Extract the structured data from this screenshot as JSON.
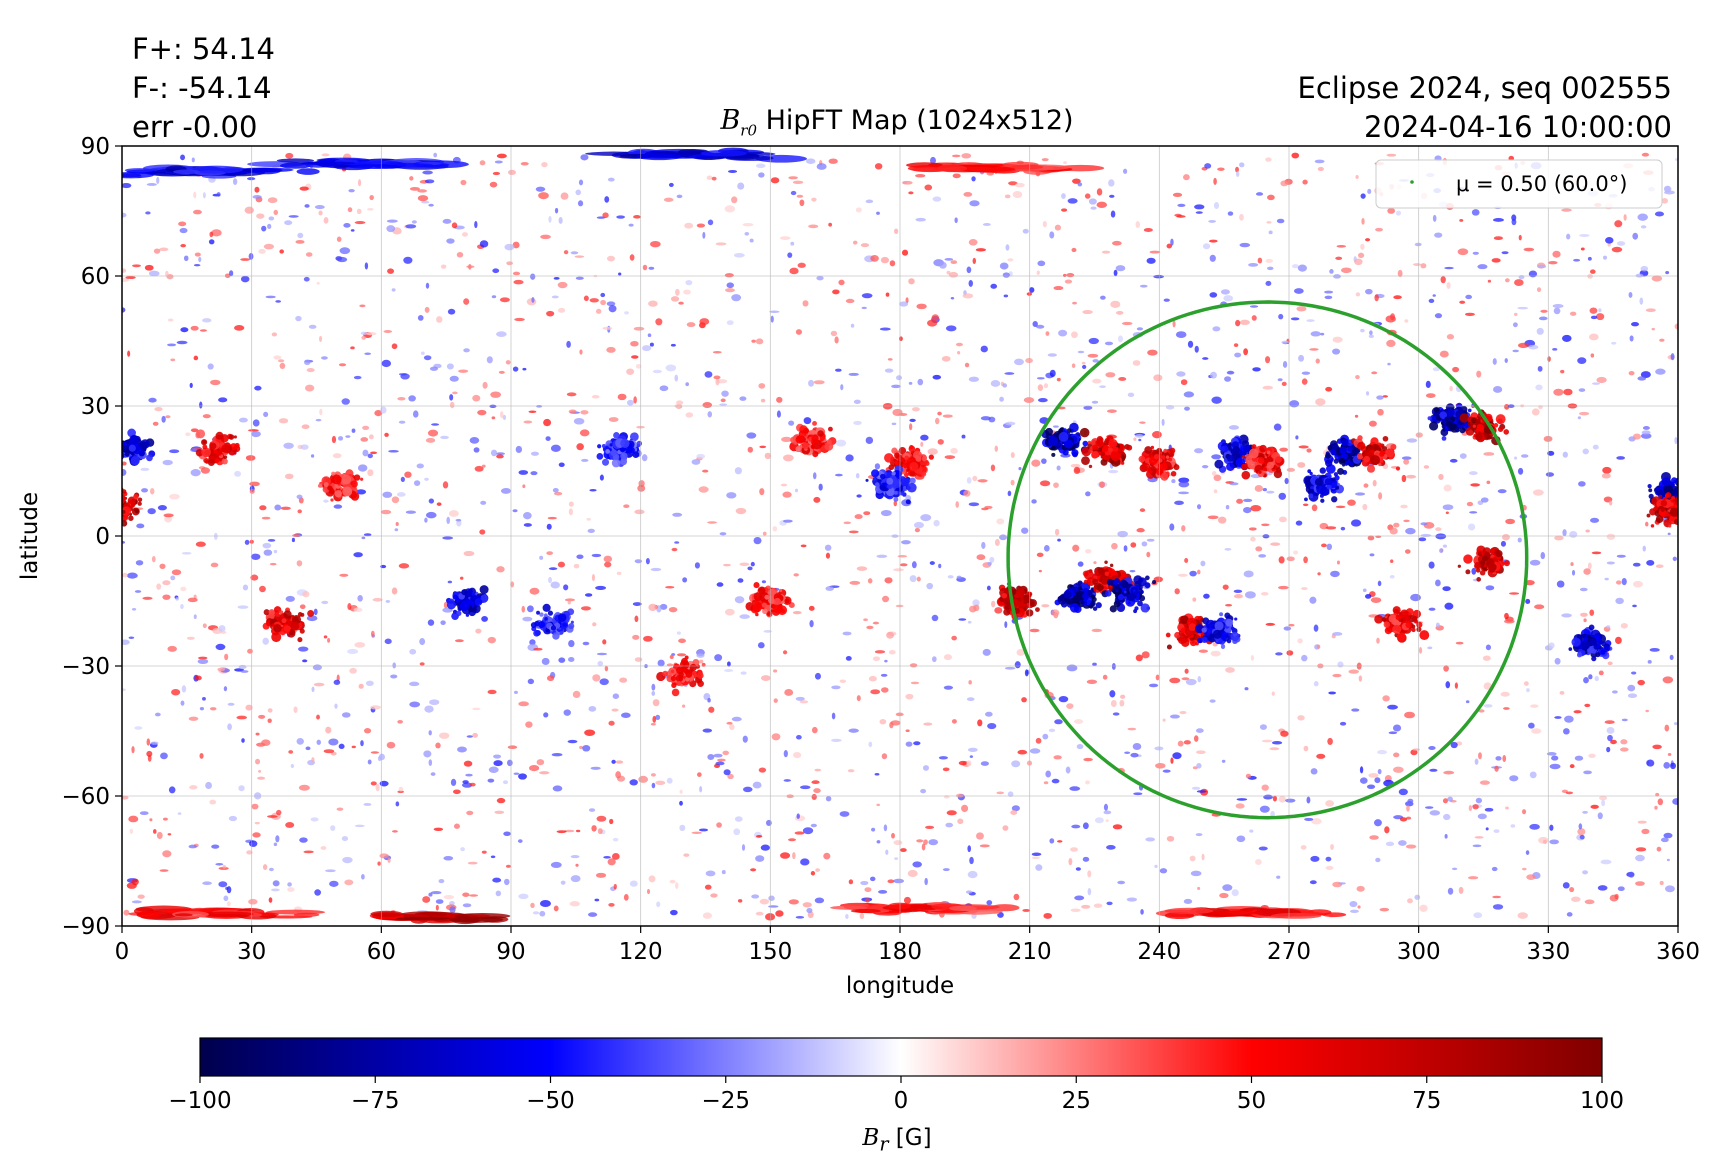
{
  "header": {
    "flux_pos": "F+: 54.14",
    "flux_neg": "F-: -54.14",
    "err": "err -0.00",
    "title_sym": "B",
    "title_sub": "r0",
    "title_text": "HipFT Map (1024x512)",
    "run": "Eclipse 2024, seq 002555",
    "datetime": "2024-04-16 10:00:00"
  },
  "chart_data": {
    "type": "heatmap",
    "xlabel": "longitude",
    "ylabel": "latitude",
    "xlim": [
      0,
      360
    ],
    "ylim": [
      -90,
      90
    ],
    "x_ticks": [
      "0",
      "30",
      "60",
      "90",
      "120",
      "150",
      "180",
      "210",
      "240",
      "270",
      "300",
      "330",
      "360"
    ],
    "y_ticks": [
      "90",
      "60",
      "30",
      "0",
      "−30",
      "−60",
      "−90"
    ],
    "grid": true,
    "colormap": "seismic",
    "colormap_colors": [
      "#00004c",
      "#0000ff",
      "#ffffff",
      "#ff0000",
      "#800000"
    ],
    "colorbar": {
      "label_sym": "B",
      "label_sub": "r",
      "label_unit": "[G]",
      "range": [
        -100,
        100
      ],
      "ticks": [
        "−100",
        "−75",
        "−50",
        "−25",
        "0",
        "25",
        "50",
        "75",
        "100"
      ]
    },
    "legend": {
      "placement": "top-right",
      "label": "μ = 0.50 (60.0°)",
      "color": "#2ca02c"
    },
    "contour": {
      "name": "μ = 0.50 (60.0°)",
      "color": "#2ca02c",
      "center_lon": 265,
      "center_lat": -5,
      "lon_half_width": 60,
      "lat_top": 54,
      "lat_bottom": -65
    },
    "active_regions": [
      {
        "lon": 218,
        "lat": 22,
        "strength": -95
      },
      {
        "lon": 228,
        "lat": 20,
        "strength": 90
      },
      {
        "lon": 240,
        "lat": 17,
        "strength": 70
      },
      {
        "lon": 258,
        "lat": 19,
        "strength": -80
      },
      {
        "lon": 264,
        "lat": 17,
        "strength": 70
      },
      {
        "lon": 278,
        "lat": 12,
        "strength": -70
      },
      {
        "lon": 283,
        "lat": 19,
        "strength": -90
      },
      {
        "lon": 290,
        "lat": 19,
        "strength": 80
      },
      {
        "lon": 308,
        "lat": 27,
        "strength": -90
      },
      {
        "lon": 315,
        "lat": 25,
        "strength": 95
      },
      {
        "lon": 207,
        "lat": -15,
        "strength": 90
      },
      {
        "lon": 222,
        "lat": -14,
        "strength": -95
      },
      {
        "lon": 228,
        "lat": -10,
        "strength": 85
      },
      {
        "lon": 233,
        "lat": -13,
        "strength": -90
      },
      {
        "lon": 248,
        "lat": -22,
        "strength": 85
      },
      {
        "lon": 254,
        "lat": -22,
        "strength": -70
      },
      {
        "lon": 296,
        "lat": -20,
        "strength": 75
      },
      {
        "lon": 316,
        "lat": -6,
        "strength": 85
      },
      {
        "lon": 2,
        "lat": 20,
        "strength": -80
      },
      {
        "lon": 0,
        "lat": 7,
        "strength": 90
      },
      {
        "lon": 22,
        "lat": 20,
        "strength": 70
      },
      {
        "lon": 50,
        "lat": 12,
        "strength": 60
      },
      {
        "lon": 38,
        "lat": -20,
        "strength": 75
      },
      {
        "lon": 80,
        "lat": -15,
        "strength": -80
      },
      {
        "lon": 100,
        "lat": -20,
        "strength": -60
      },
      {
        "lon": 160,
        "lat": 22,
        "strength": 60
      },
      {
        "lon": 182,
        "lat": 17,
        "strength": 65
      },
      {
        "lon": 178,
        "lat": 12,
        "strength": -60
      },
      {
        "lon": 150,
        "lat": -15,
        "strength": 60
      },
      {
        "lon": 130,
        "lat": -32,
        "strength": 60
      },
      {
        "lon": 115,
        "lat": 20,
        "strength": -55
      },
      {
        "lon": 340,
        "lat": -25,
        "strength": -80
      },
      {
        "lon": 358,
        "lat": 10,
        "strength": -85
      },
      {
        "lon": 358,
        "lat": 6,
        "strength": 85
      }
    ],
    "polar_bands": [
      {
        "lon": 20,
        "lat": 84,
        "strength": -75
      },
      {
        "lon": 55,
        "lat": 86,
        "strength": -70
      },
      {
        "lon": 135,
        "lat": 88,
        "strength": -80
      },
      {
        "lon": 200,
        "lat": 85,
        "strength": 60
      },
      {
        "lon": 75,
        "lat": -88,
        "strength": 95
      },
      {
        "lon": 20,
        "lat": -87,
        "strength": 65
      },
      {
        "lon": 260,
        "lat": -87,
        "strength": 70
      },
      {
        "lon": 185,
        "lat": -86,
        "strength": 60
      }
    ]
  }
}
